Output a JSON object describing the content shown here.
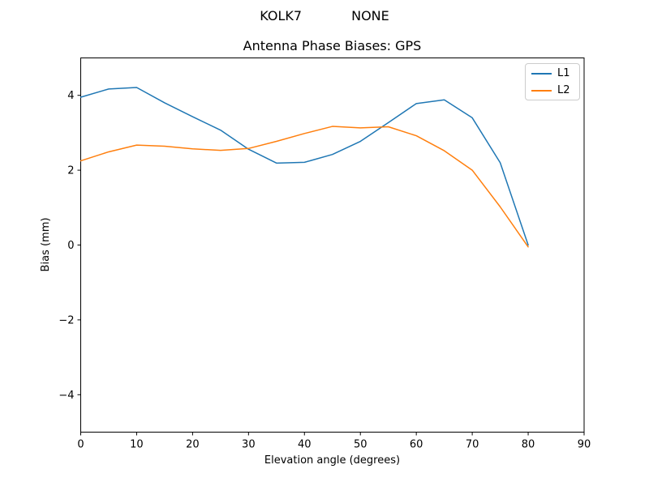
{
  "header": {
    "suptitle": "KOLK7            NONE"
  },
  "chart_data": {
    "type": "line",
    "title": "Antenna Phase Biases: GPS",
    "xlabel": "Elevation angle (degrees)",
    "ylabel": "Bias (mm)",
    "xlim": [
      0,
      90
    ],
    "ylim": [
      -5,
      5
    ],
    "x_ticks": [
      0,
      10,
      20,
      30,
      40,
      50,
      60,
      70,
      80,
      90
    ],
    "y_ticks": [
      -4,
      -2,
      0,
      2,
      4
    ],
    "grid": false,
    "legend_position": "upper right",
    "frame_color": "#000000",
    "x": [
      0,
      5,
      10,
      15,
      20,
      25,
      30,
      35,
      40,
      45,
      50,
      55,
      60,
      65,
      70,
      75,
      80
    ],
    "series": [
      {
        "name": "L1",
        "color": "#1f77b4",
        "values": [
          3.95,
          4.17,
          4.21,
          3.8,
          3.43,
          3.07,
          2.56,
          2.19,
          2.21,
          2.42,
          2.77,
          3.27,
          3.78,
          3.88,
          3.4,
          2.2,
          0.0
        ]
      },
      {
        "name": "L2",
        "color": "#ff7f0e",
        "values": [
          2.25,
          2.49,
          2.67,
          2.64,
          2.57,
          2.53,
          2.58,
          2.77,
          2.98,
          3.17,
          3.13,
          3.16,
          2.92,
          2.52,
          2.0,
          1.02,
          -0.05
        ]
      }
    ]
  }
}
